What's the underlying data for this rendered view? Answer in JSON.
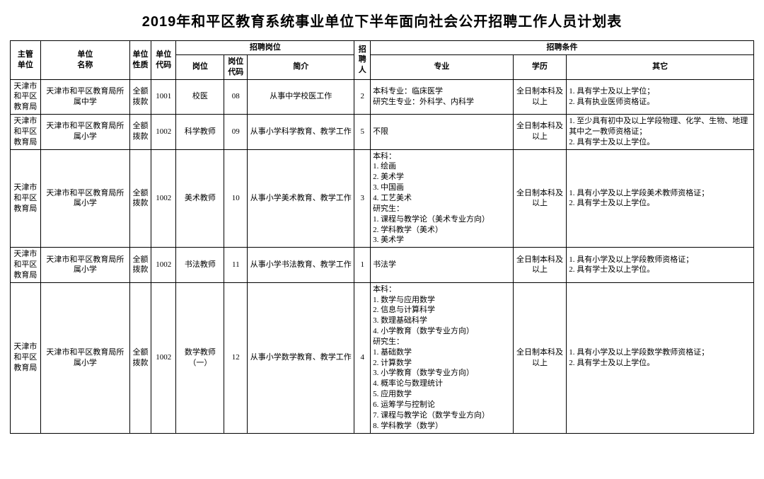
{
  "title": "2019年和平区教育系统事业单位下半年面向社会公开招聘工作人员计划表",
  "headers": {
    "dept": "主管\n单位",
    "unit": "单位\n名称",
    "nature": "单位\n性质",
    "code": "单位\n代码",
    "position_group": "招聘岗位",
    "post": "岗位",
    "postcode": "岗位\n代码",
    "brief": "简介",
    "num": "招\n聘\n人",
    "cond_group": "招聘条件",
    "major": "专业",
    "edu": "学历",
    "other": "其它"
  },
  "rows": [
    {
      "dept": "天津市和平区教育局",
      "unit": "天津市和平区教育局所属中学",
      "nature": "全额拨款",
      "code": "1001",
      "post": "校医",
      "postcode": "08",
      "brief": "从事中学校医工作",
      "num": "2",
      "major": "本科专业：临床医学\n研究生专业：外科学、内科学",
      "edu": "全日制本科及以上",
      "other": "1. 具有学士及以上学位；\n2. 具有执业医师资格证。"
    },
    {
      "dept": "天津市和平区教育局",
      "unit": "天津市和平区教育局所属小学",
      "nature": "全额拨款",
      "code": "1002",
      "post": "科学教师",
      "postcode": "09",
      "brief": "从事小学科学教育、教学工作",
      "num": "5",
      "major": "不限",
      "edu": "全日制本科及以上",
      "other": "1. 至少具有初中及以上学段物理、化学、生物、地理其中之一教师资格证；\n2. 具有学士及以上学位。"
    },
    {
      "dept": "天津市和平区教育局",
      "unit": "天津市和平区教育局所属小学",
      "nature": "全额拨款",
      "code": "1002",
      "post": "美术教师",
      "postcode": "10",
      "brief": "从事小学美术教育、教学工作",
      "num": "3",
      "major": "本科：\n1. 绘画\n2. 美术学\n3. 中国画\n4. 工艺美术\n研究生：\n1. 课程与教学论（美术专业方向）\n2. 学科教学（美术）\n3. 美术学",
      "edu": "全日制本科及以上",
      "other": "1. 具有小学及以上学段美术教师资格证；\n2. 具有学士及以上学位。"
    },
    {
      "dept": "天津市和平区教育局",
      "unit": "天津市和平区教育局所属小学",
      "nature": "全额拨款",
      "code": "1002",
      "post": "书法教师",
      "postcode": "11",
      "brief": "从事小学书法教育、教学工作",
      "num": "1",
      "major": "书法学",
      "edu": "全日制本科及以上",
      "other": "1. 具有小学及以上学段教师资格证；\n2. 具有学士及以上学位。"
    },
    {
      "dept": "天津市和平区教育局",
      "unit": "天津市和平区教育局所属小学",
      "nature": "全额拨款",
      "code": "1002",
      "post": "数学教师（一）",
      "postcode": "12",
      "brief": "从事小学数学教育、教学工作",
      "num": "4",
      "major": "本科：\n1. 数学与应用数学\n2. 信息与计算科学\n3. 数理基础科学\n4. 小学教育（数学专业方向）\n研究生：\n1. 基础数学\n2. 计算数学\n3. 小学教育（数学专业方向）\n4. 概率论与数理统计\n5. 应用数学\n6. 运筹学与控制论\n7. 课程与教学论（数学专业方向）\n8. 学科教学（数学）",
      "edu": "全日制本科及以上",
      "other": "1. 具有小学及以上学段数学教师资格证；\n2. 具有学士及以上学位。"
    }
  ]
}
